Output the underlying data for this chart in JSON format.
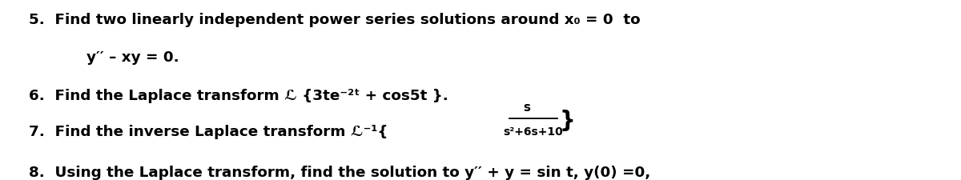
{
  "background_color": "#ffffff",
  "figsize": [
    12.0,
    2.26
  ],
  "dpi": 100,
  "fontsize": 13.2,
  "fontweight": "bold",
  "fontfamily": "DejaVu Sans",
  "color": "#000000",
  "lines": [
    {
      "xfig": 0.03,
      "yfig": 0.93,
      "text": "5.  Find two linearly independent power series solutions around x₀ = 0  to"
    },
    {
      "xfig": 0.09,
      "yfig": 0.72,
      "text": "y′′ – xy = 0."
    },
    {
      "xfig": 0.03,
      "yfig": 0.51,
      "text": "6.  Find the Laplace transform ℒ {3te⁻²ᵗ + cos5t }."
    },
    {
      "xfig": 0.03,
      "yfig": 0.31,
      "text": "7.  Find the inverse Laplace transform ℒ⁻¹{"
    },
    {
      "xfig": 0.03,
      "yfig": 0.085,
      "text": "8.  Using the Laplace transform, find the solution to y′′ + y = sin t, y(0) =0,"
    }
  ],
  "frac": {
    "num_text": "s",
    "den_text": "s²+6s+10",
    "close_brace": "}",
    "num_xfig": 0.548,
    "num_yfig": 0.405,
    "line_x1fig": 0.53,
    "line_x2fig": 0.58,
    "line_yfig": 0.34,
    "den_xfig": 0.555,
    "den_yfig": 0.27,
    "brace_xfig": 0.582,
    "brace_yfig": 0.33,
    "num_fontsize": 11.0,
    "den_fontsize": 10.0,
    "brace_fontsize": 20
  }
}
